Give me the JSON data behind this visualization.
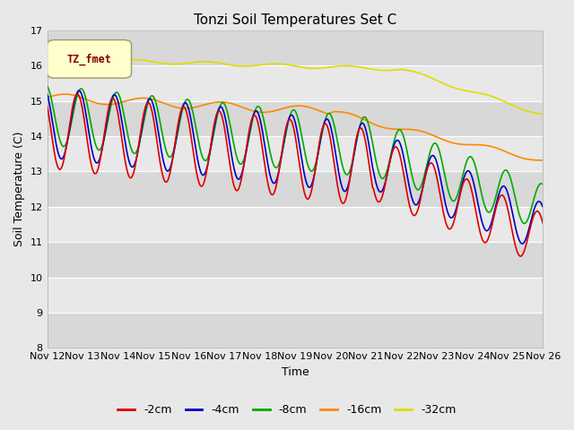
{
  "title": "Tonzi Soil Temperatures Set C",
  "xlabel": "Time",
  "ylabel": "Soil Temperature (C)",
  "ylim": [
    8.0,
    17.0
  ],
  "yticks": [
    8.0,
    9.0,
    10.0,
    11.0,
    12.0,
    13.0,
    14.0,
    15.0,
    16.0,
    17.0
  ],
  "xtick_labels": [
    "Nov 12",
    "Nov 13",
    "Nov 14",
    "Nov 15",
    "Nov 16",
    "Nov 17",
    "Nov 18",
    "Nov 19",
    "Nov 20",
    "Nov 21",
    "Nov 22",
    "Nov 23",
    "Nov 24",
    "Nov 25",
    "Nov 26"
  ],
  "colors": {
    "-2cm": "#dd0000",
    "-4cm": "#0000cc",
    "-8cm": "#00aa00",
    "-16cm": "#ff8800",
    "-32cm": "#dddd00"
  },
  "legend_label": "TZ_fmet",
  "legend_box_facecolor": "#ffffcc",
  "legend_box_edgecolor": "#999966",
  "legend_text_color": "#880000",
  "fig_facecolor": "#e8e8e8",
  "plot_facecolor": "#e8e8e8",
  "grid_color": "#ffffff",
  "alt_band_color": "#d8d8d8",
  "linewidth": 1.2,
  "title_fontsize": 11,
  "axis_label_fontsize": 9,
  "tick_fontsize": 8
}
